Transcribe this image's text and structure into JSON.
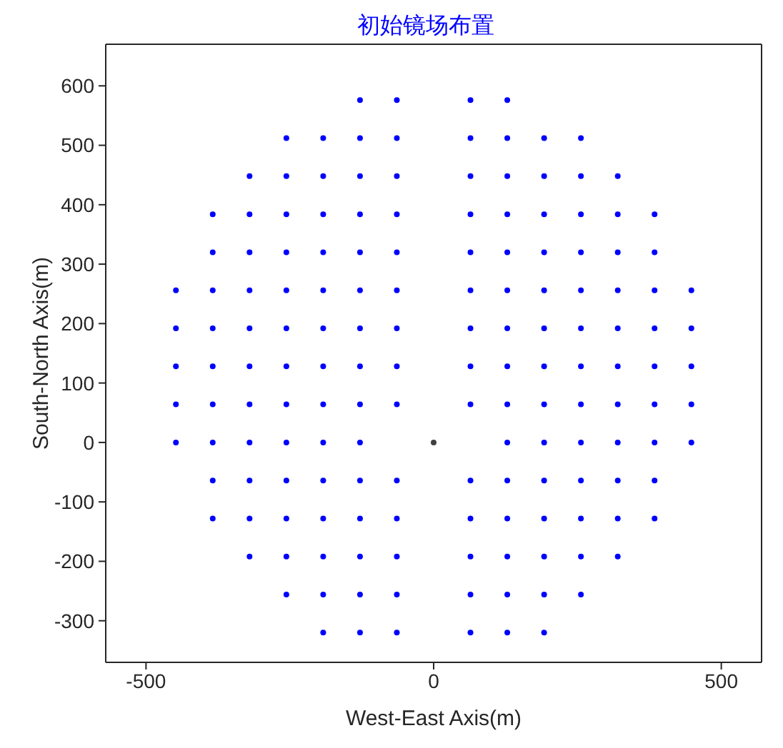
{
  "chart_data": {
    "type": "scatter",
    "title": "初始镜场布置",
    "xlabel": "West-East Axis(m)",
    "ylabel": "South-North Axis(m)",
    "xlim": [
      -570,
      570
    ],
    "ylim": [
      -370,
      670
    ],
    "xticks": [
      -500,
      0,
      500
    ],
    "yticks": [
      -300,
      -200,
      -100,
      0,
      100,
      200,
      300,
      400,
      500,
      600
    ],
    "marker": "circle",
    "series": [
      {
        "color": "#0000ff",
        "x": [
          -128,
          -64,
          64,
          128,
          -256,
          -192,
          -128,
          -64,
          64,
          128,
          192,
          256,
          -320,
          -256,
          -192,
          -128,
          -64,
          64,
          128,
          192,
          256,
          320,
          -384,
          -320,
          -256,
          -192,
          -128,
          -64,
          64,
          128,
          192,
          256,
          320,
          384,
          -384,
          -320,
          -256,
          -192,
          -128,
          -64,
          64,
          128,
          192,
          256,
          320,
          384,
          -448,
          -384,
          -320,
          -256,
          -192,
          -128,
          -64,
          64,
          128,
          192,
          256,
          320,
          384,
          448,
          -448,
          -384,
          -320,
          -256,
          -192,
          -128,
          -64,
          64,
          128,
          192,
          256,
          320,
          384,
          448,
          -448,
          -384,
          -320,
          -256,
          -192,
          -128,
          -64,
          64,
          128,
          192,
          256,
          320,
          384,
          448,
          -448,
          -384,
          -320,
          -256,
          -192,
          -128,
          -64,
          64,
          128,
          192,
          256,
          320,
          384,
          448,
          -448,
          -384,
          -320,
          -256,
          -192,
          -128,
          128,
          192,
          256,
          320,
          384,
          448,
          -384,
          -320,
          -256,
          -192,
          -128,
          -64,
          64,
          128,
          192,
          256,
          320,
          384,
          -384,
          -320,
          -256,
          -192,
          -128,
          -64,
          64,
          128,
          192,
          256,
          320,
          384,
          -320,
          -256,
          -192,
          -128,
          -64,
          64,
          128,
          192,
          256,
          320,
          -256,
          -192,
          -128,
          -64,
          64,
          128,
          192,
          256,
          -192,
          -128,
          -64,
          64,
          128,
          192
        ],
        "values": [
          576,
          576,
          576,
          576,
          512,
          512,
          512,
          512,
          512,
          512,
          512,
          512,
          448,
          448,
          448,
          448,
          448,
          448,
          448,
          448,
          448,
          448,
          384,
          384,
          384,
          384,
          384,
          384,
          384,
          384,
          384,
          384,
          384,
          384,
          320,
          320,
          320,
          320,
          320,
          320,
          320,
          320,
          320,
          320,
          320,
          320,
          256,
          256,
          256,
          256,
          256,
          256,
          256,
          256,
          256,
          256,
          256,
          256,
          256,
          256,
          192,
          192,
          192,
          192,
          192,
          192,
          192,
          192,
          192,
          192,
          192,
          192,
          192,
          192,
          128,
          128,
          128,
          128,
          128,
          128,
          128,
          128,
          128,
          128,
          128,
          128,
          128,
          128,
          64,
          64,
          64,
          64,
          64,
          64,
          64,
          64,
          64,
          64,
          64,
          64,
          64,
          64,
          0,
          0,
          0,
          0,
          0,
          0,
          0,
          0,
          0,
          0,
          0,
          0,
          -64,
          -64,
          -64,
          -64,
          -64,
          -64,
          -64,
          -64,
          -64,
          -64,
          -64,
          -64,
          -128,
          -128,
          -128,
          -128,
          -128,
          -128,
          -128,
          -128,
          -128,
          -128,
          -128,
          -128,
          -192,
          -192,
          -192,
          -192,
          -192,
          -192,
          -192,
          -192,
          -192,
          -192,
          -256,
          -256,
          -256,
          -256,
          -256,
          -256,
          -256,
          -256,
          -320,
          -320,
          -320,
          -320,
          -320,
          -320
        ]
      },
      {
        "color": "#404040",
        "x": [
          0
        ],
        "values": [
          0
        ]
      }
    ]
  }
}
